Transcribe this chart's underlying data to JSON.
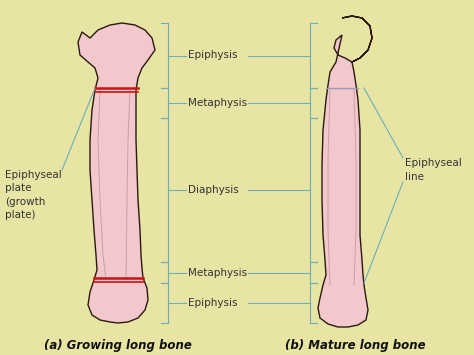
{
  "bg_color": "#e8e4a4",
  "bone_fill": "#f2c8cc",
  "bone_outline": "#2a1a10",
  "red_line_color": "#cc1111",
  "label_color": "#333333",
  "line_color": "#6ab0bb",
  "title_left": "(a) Growing long bone",
  "title_right": "(b) Mature long bone",
  "label_epiphyseal_plate": "Epiphyseal\nplate\n(growth\nplate)",
  "label_epiphyseal_line": "Epiphyseal\nline",
  "font_size": 7.5,
  "title_font_size": 8.5
}
